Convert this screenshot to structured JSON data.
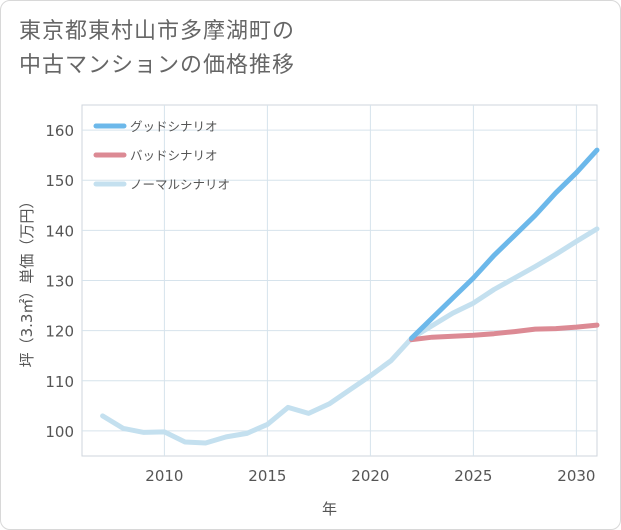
{
  "title": {
    "line1": "東京都東村山市多摩湖町の",
    "line2": "中古マンションの価格推移"
  },
  "chart_data": {
    "type": "line",
    "xlabel": "年",
    "ylabel": "坪（3.3㎡）単価（万円）",
    "xlim": [
      2006,
      2031
    ],
    "ylim": [
      95,
      165
    ],
    "xticks": [
      2010,
      2015,
      2020,
      2025,
      2030
    ],
    "yticks": [
      100,
      110,
      120,
      130,
      140,
      150,
      160
    ],
    "grid": true,
    "legend_position": "top-left",
    "series": [
      {
        "name": "グッドシナリオ",
        "color": "#6cb8ea",
        "x": [
          2022,
          2023,
          2024,
          2025,
          2026,
          2027,
          2028,
          2029,
          2030,
          2031
        ],
        "y": [
          118.5,
          122.5,
          126.5,
          130.5,
          135,
          139,
          143,
          147.5,
          151.5,
          156
        ]
      },
      {
        "name": "バッドシナリオ",
        "color": "#dc8a94",
        "x": [
          2022,
          2023,
          2024,
          2025,
          2026,
          2027,
          2028,
          2029,
          2030,
          2031
        ],
        "y": [
          118.2,
          118.7,
          118.9,
          119.1,
          119.4,
          119.8,
          120.3,
          120.4,
          120.7,
          121.1
        ]
      },
      {
        "name": "ノーマルシナリオ",
        "color": "#c4e0ef",
        "x": [
          2007,
          2008,
          2009,
          2010,
          2011,
          2012,
          2013,
          2014,
          2015,
          2016,
          2017,
          2018,
          2019,
          2020,
          2021,
          2022,
          2023,
          2024,
          2025,
          2026,
          2027,
          2028,
          2029,
          2030,
          2031
        ],
        "y": [
          103,
          100.5,
          99.7,
          99.8,
          97.8,
          97.6,
          98.8,
          99.5,
          101.3,
          104.7,
          103.5,
          105.4,
          108.2,
          111,
          114,
          118.5,
          121,
          123.5,
          125.5,
          128.2,
          130.5,
          132.8,
          135.2,
          137.8,
          140.3
        ]
      }
    ]
  }
}
